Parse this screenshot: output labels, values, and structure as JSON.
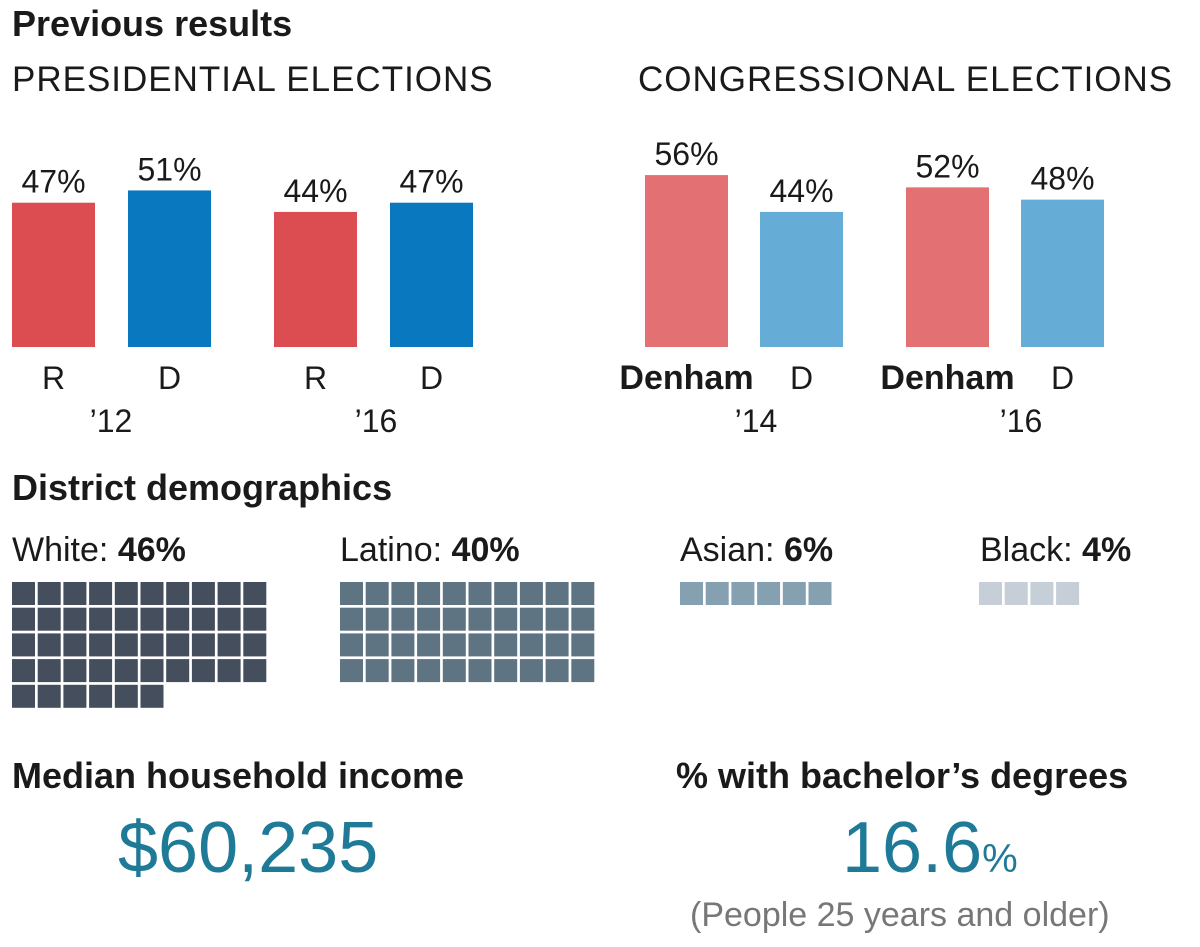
{
  "headings": {
    "previous_results": "Previous results",
    "district_demographics": "District demographics",
    "median_income": "Median household income",
    "bachelors": "% with bachelor’s degrees"
  },
  "chart_data": [
    {
      "type": "bar",
      "title": "PRESIDENTIAL ELECTIONS",
      "ylim": [
        0,
        60
      ],
      "groups": [
        {
          "label": "’12",
          "bars": [
            {
              "label": "R",
              "value": 47,
              "value_label": "47%",
              "color": "#dc4d52",
              "bold": false
            },
            {
              "label": "D",
              "value": 51,
              "value_label": "51%",
              "color": "#0a78be",
              "bold": false
            }
          ]
        },
        {
          "label": "’16",
          "bars": [
            {
              "label": "R",
              "value": 44,
              "value_label": "44%",
              "color": "#dc4d52",
              "bold": false
            },
            {
              "label": "D",
              "value": 47,
              "value_label": "47%",
              "color": "#0a78be",
              "bold": false
            }
          ]
        }
      ]
    },
    {
      "type": "bar",
      "title": "CONGRESSIONAL ELECTIONS",
      "ylim": [
        0,
        60
      ],
      "groups": [
        {
          "label": "’14",
          "bars": [
            {
              "label": "Denham",
              "value": 56,
              "value_label": "56%",
              "color": "#e37174",
              "bold": true
            },
            {
              "label": "D",
              "value": 44,
              "value_label": "44%",
              "color": "#65acd6",
              "bold": false
            }
          ]
        },
        {
          "label": "’16",
          "bars": [
            {
              "label": "Denham",
              "value": 52,
              "value_label": "52%",
              "color": "#e37174",
              "bold": true
            },
            {
              "label": "D",
              "value": 48,
              "value_label": "48%",
              "color": "#65acd6",
              "bold": false
            }
          ]
        }
      ]
    },
    {
      "type": "waffle",
      "title": "District demographics",
      "categories": [
        {
          "name": "White",
          "label": "White: ",
          "value": 46,
          "value_label": "46%",
          "color": "#454e5c"
        },
        {
          "name": "Latino",
          "label": "Latino: ",
          "value": 40,
          "value_label": "40%",
          "color": "#5f7482"
        },
        {
          "name": "Asian",
          "label": "Asian: ",
          "value": 6,
          "value_label": "6%",
          "color": "#85a0b1"
        },
        {
          "name": "Black",
          "label": "Black: ",
          "value": 4,
          "value_label": "4%",
          "color": "#c6ced7"
        }
      ]
    }
  ],
  "stats": {
    "income_value": "$60,235",
    "bachelors_value": "16.6",
    "bachelors_unit": "%",
    "bachelors_note": "(People 25 years and older)"
  }
}
